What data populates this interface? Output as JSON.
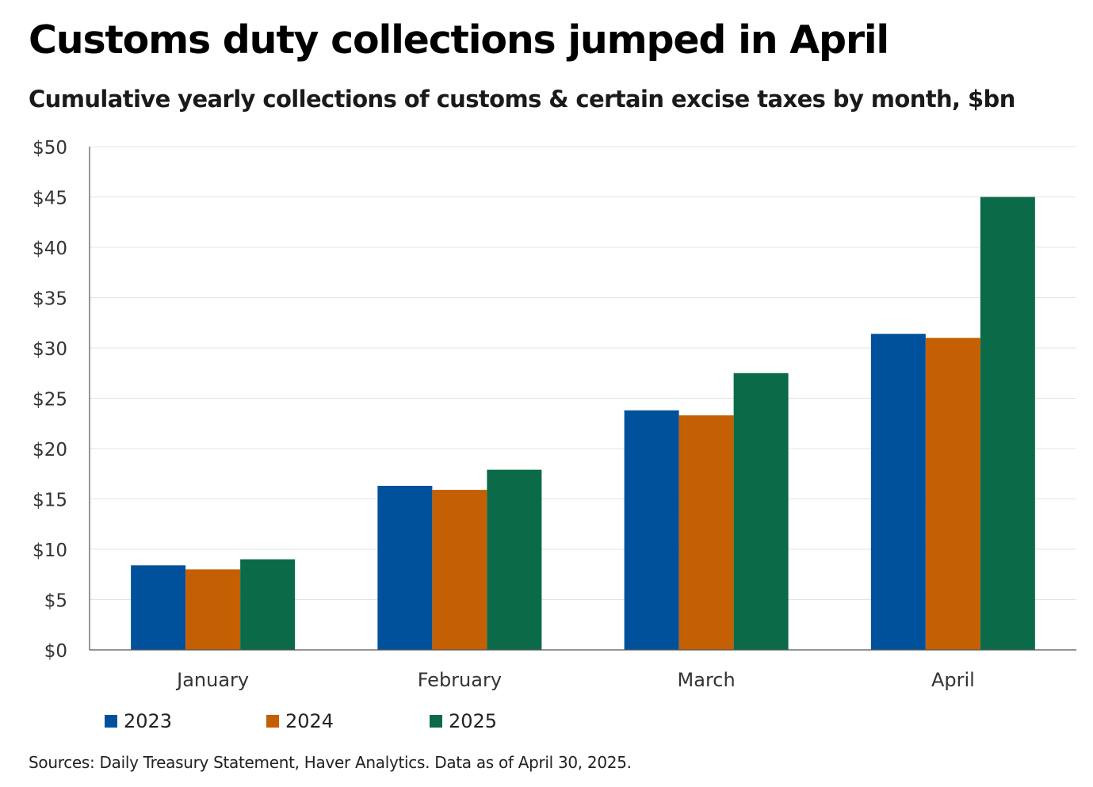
{
  "title": "Customs duty collections jumped in April",
  "subtitle": "Cumulative yearly collections of customs & certain excise taxes by month, $bn",
  "source": "Sources: Daily Treasury Statement, Haver Analytics. Data as of April 30, 2025.",
  "chart_data": {
    "type": "bar",
    "title": "Customs duty collections jumped in April",
    "subtitle": "Cumulative yearly collections of customs & certain excise taxes by month, $bn",
    "xlabel": "",
    "ylabel": "",
    "categories": [
      "January",
      "February",
      "March",
      "April"
    ],
    "series": [
      {
        "name": "2023",
        "color": "#00519B",
        "values": [
          8.4,
          16.3,
          23.8,
          31.4
        ]
      },
      {
        "name": "2024",
        "color": "#C45F04",
        "values": [
          8.0,
          15.9,
          23.3,
          31.0
        ]
      },
      {
        "name": "2025",
        "color": "#0B6B48",
        "values": [
          9.0,
          17.9,
          27.5,
          45.0
        ]
      }
    ],
    "ylim": [
      0,
      50
    ],
    "yticks": [
      0,
      5,
      10,
      15,
      20,
      25,
      30,
      35,
      40,
      45,
      50
    ],
    "ytick_labels": [
      "$0",
      "$5",
      "$10",
      "$15",
      "$20",
      "$25",
      "$30",
      "$35",
      "$40",
      "$45",
      "$50"
    ],
    "grid": true,
    "legend_position": "bottom-left"
  }
}
